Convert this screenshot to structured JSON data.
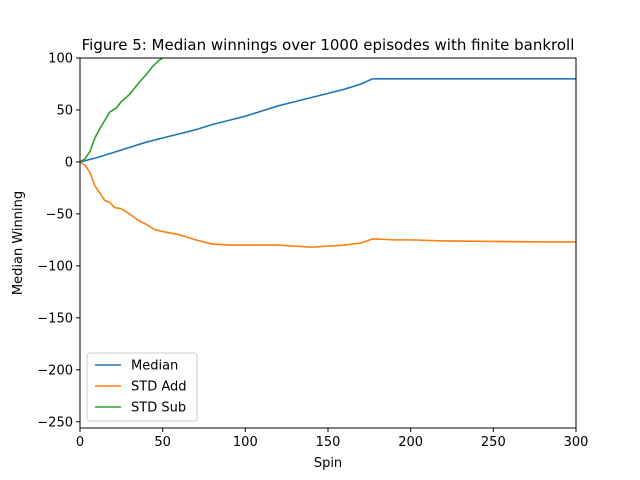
{
  "chart_data": {
    "type": "line",
    "title": "Figure 5: Median winnings over 1000 episodes with finite bankroll",
    "xlabel": "Spin",
    "ylabel": "Median Winning",
    "xlim": [
      0,
      300
    ],
    "ylim": [
      -256,
      100
    ],
    "xticks": [
      0,
      50,
      100,
      150,
      200,
      250,
      300
    ],
    "yticks": [
      -250,
      -200,
      -150,
      -100,
      -50,
      0,
      50,
      100
    ],
    "grid": false,
    "legend_position": "lower-left",
    "series": [
      {
        "name": "Median",
        "color": "#1f77b4",
        "points": [
          [
            0,
            0
          ],
          [
            10,
            4
          ],
          [
            20,
            9
          ],
          [
            30,
            14
          ],
          [
            40,
            19
          ],
          [
            50,
            23
          ],
          [
            60,
            27
          ],
          [
            70,
            31
          ],
          [
            80,
            36
          ],
          [
            90,
            40
          ],
          [
            100,
            44
          ],
          [
            110,
            49
          ],
          [
            120,
            54
          ],
          [
            130,
            58
          ],
          [
            140,
            62
          ],
          [
            150,
            66
          ],
          [
            160,
            70
          ],
          [
            170,
            75
          ],
          [
            177,
            80
          ],
          [
            200,
            80
          ],
          [
            250,
            80
          ],
          [
            300,
            80
          ]
        ]
      },
      {
        "name": "STD Add",
        "color": "#ff7f0e",
        "points": [
          [
            0,
            0
          ],
          [
            3,
            -3
          ],
          [
            6,
            -10
          ],
          [
            9,
            -23
          ],
          [
            12,
            -30
          ],
          [
            15,
            -37
          ],
          [
            18,
            -39
          ],
          [
            21,
            -44
          ],
          [
            25,
            -45
          ],
          [
            30,
            -50
          ],
          [
            35,
            -56
          ],
          [
            40,
            -60
          ],
          [
            45,
            -65
          ],
          [
            50,
            -67
          ],
          [
            60,
            -70
          ],
          [
            70,
            -75
          ],
          [
            80,
            -79
          ],
          [
            90,
            -80
          ],
          [
            100,
            -80
          ],
          [
            110,
            -80
          ],
          [
            120,
            -80
          ],
          [
            130,
            -81
          ],
          [
            140,
            -82
          ],
          [
            150,
            -81
          ],
          [
            160,
            -80
          ],
          [
            170,
            -78
          ],
          [
            177,
            -74
          ],
          [
            190,
            -75
          ],
          [
            200,
            -75
          ],
          [
            220,
            -76
          ],
          [
            250,
            -76.5
          ],
          [
            280,
            -77
          ],
          [
            300,
            -77
          ]
        ]
      },
      {
        "name": "STD Sub",
        "color": "#2ca02c",
        "points": [
          [
            0,
            0
          ],
          [
            3,
            3
          ],
          [
            6,
            10
          ],
          [
            9,
            23
          ],
          [
            12,
            32
          ],
          [
            15,
            40
          ],
          [
            18,
            48
          ],
          [
            22,
            52
          ],
          [
            25,
            58
          ],
          [
            30,
            65
          ],
          [
            35,
            75
          ],
          [
            40,
            84
          ],
          [
            44,
            92
          ],
          [
            48,
            98
          ],
          [
            50,
            100
          ]
        ]
      }
    ]
  }
}
